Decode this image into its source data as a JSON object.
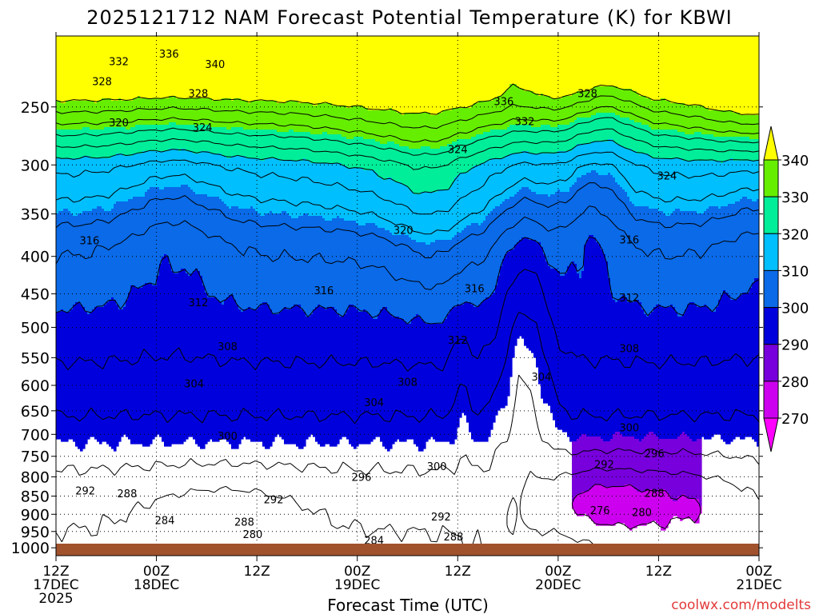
{
  "chart_data": {
    "type": "heatmap",
    "title": "2025121712 NAM Forecast Potential Temperature (K) for KBWI",
    "xlabel": "Forecast Time (UTC)",
    "ylabel": "",
    "credit": "coolwx.com/modelts",
    "x_ticks": [
      {
        "hours": 0,
        "lines": [
          "12Z",
          "17DEC",
          "2025"
        ]
      },
      {
        "hours": 12,
        "lines": [
          "00Z",
          "18DEC"
        ]
      },
      {
        "hours": 24,
        "lines": [
          "12Z"
        ]
      },
      {
        "hours": 36,
        "lines": [
          "00Z",
          "19DEC"
        ]
      },
      {
        "hours": 48,
        "lines": [
          "12Z"
        ]
      },
      {
        "hours": 60,
        "lines": [
          "00Z",
          "20DEC"
        ]
      },
      {
        "hours": 72,
        "lines": [
          "12Z"
        ]
      },
      {
        "hours": 84,
        "lines": [
          "00Z",
          "21DEC"
        ]
      }
    ],
    "xlim": [
      0,
      84
    ],
    "y_ticks": [
      "250",
      "300",
      "350",
      "400",
      "450",
      "500",
      "550",
      "600",
      "650",
      "700",
      "750",
      "800",
      "850",
      "900",
      "950",
      "1000"
    ],
    "y_values": [
      250,
      300,
      350,
      400,
      450,
      500,
      550,
      600,
      650,
      700,
      750,
      800,
      850,
      900,
      950,
      1000
    ],
    "ylim": [
      200,
      1025
    ],
    "y_scale": "log",
    "colorbar": {
      "labels": [
        "340",
        "330",
        "320",
        "310",
        "300",
        "290",
        "280",
        "270"
      ],
      "levels": [
        270,
        280,
        290,
        300,
        310,
        320,
        330,
        340
      ],
      "colors": [
        "#ff00ff",
        "#cc00ee",
        "#7700dd",
        "#0000dd",
        "#0a6ae8",
        "#00bfff",
        "#00ee99",
        "#66ee00",
        "#ffff00"
      ]
    },
    "grid": "dotted",
    "ground_color": "#a0522d",
    "isentropes": [
      276,
      280,
      284,
      288,
      292,
      296,
      300,
      304,
      308,
      312,
      316,
      320,
      324,
      328,
      332,
      336,
      340
    ],
    "isentrope_labels": [
      {
        "text": "336",
        "t": 13.5,
        "p": 212
      },
      {
        "text": "332",
        "t": 7.5,
        "p": 217
      },
      {
        "text": "340",
        "t": 19,
        "p": 219
      },
      {
        "text": "328",
        "t": 5.5,
        "p": 231
      },
      {
        "text": "328",
        "t": 17,
        "p": 240
      },
      {
        "text": "328",
        "t": 63.5,
        "p": 240
      },
      {
        "text": "336",
        "t": 53.5,
        "p": 246
      },
      {
        "text": "324",
        "t": 17.5,
        "p": 267
      },
      {
        "text": "332",
        "t": 56,
        "p": 262
      },
      {
        "text": "320",
        "t": 7.5,
        "p": 263
      },
      {
        "text": "324",
        "t": 48,
        "p": 286
      },
      {
        "text": "324",
        "t": 73,
        "p": 311
      },
      {
        "text": "320",
        "t": 41.5,
        "p": 369
      },
      {
        "text": "316",
        "t": 4,
        "p": 381
      },
      {
        "text": "316",
        "t": 68.5,
        "p": 380
      },
      {
        "text": "316",
        "t": 32,
        "p": 446
      },
      {
        "text": "316",
        "t": 50,
        "p": 443
      },
      {
        "text": "312",
        "t": 17,
        "p": 463
      },
      {
        "text": "312",
        "t": 68.5,
        "p": 456
      },
      {
        "text": "312",
        "t": 48,
        "p": 521
      },
      {
        "text": "308",
        "t": 20.5,
        "p": 532
      },
      {
        "text": "308",
        "t": 68.5,
        "p": 535
      },
      {
        "text": "308",
        "t": 42,
        "p": 595
      },
      {
        "text": "304",
        "t": 16.5,
        "p": 598
      },
      {
        "text": "304",
        "t": 58,
        "p": 585
      },
      {
        "text": "304",
        "t": 38,
        "p": 634
      },
      {
        "text": "300",
        "t": 20.5,
        "p": 705
      },
      {
        "text": "300",
        "t": 68.5,
        "p": 686
      },
      {
        "text": "300",
        "t": 45.5,
        "p": 775
      },
      {
        "text": "296",
        "t": 71.5,
        "p": 745
      },
      {
        "text": "292",
        "t": 65.5,
        "p": 771
      },
      {
        "text": "296",
        "t": 36.5,
        "p": 802
      },
      {
        "text": "292",
        "t": 3.5,
        "p": 837
      },
      {
        "text": "288",
        "t": 8.5,
        "p": 845
      },
      {
        "text": "288",
        "t": 71.5,
        "p": 844
      },
      {
        "text": "292",
        "t": 26,
        "p": 861
      },
      {
        "text": "276",
        "t": 65,
        "p": 890
      },
      {
        "text": "280",
        "t": 70,
        "p": 896
      },
      {
        "text": "292",
        "t": 46,
        "p": 909
      },
      {
        "text": "284",
        "t": 13,
        "p": 919
      },
      {
        "text": "288",
        "t": 22.5,
        "p": 924
      },
      {
        "text": "280",
        "t": 23.5,
        "p": 960
      },
      {
        "text": "284",
        "t": 38,
        "p": 978
      },
      {
        "text": "288",
        "t": 47.5,
        "p": 968
      }
    ]
  }
}
